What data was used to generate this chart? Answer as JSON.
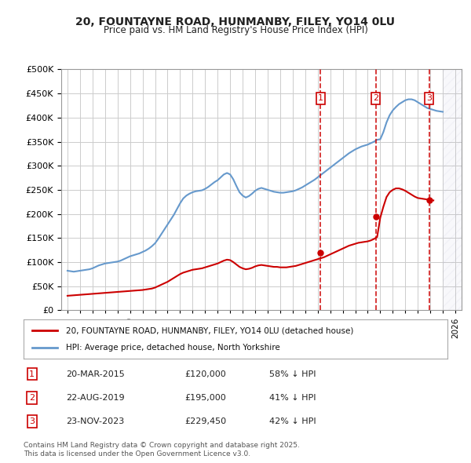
{
  "title": "20, FOUNTAYNE ROAD, HUNMANBY, FILEY, YO14 0LU",
  "subtitle": "Price paid vs. HM Land Registry's House Price Index (HPI)",
  "ylabel": "",
  "bg_color": "#ffffff",
  "plot_bg_color": "#ffffff",
  "grid_color": "#cccccc",
  "hpi_color": "#6699cc",
  "price_color": "#cc0000",
  "ylim": [
    0,
    500000
  ],
  "yticks": [
    0,
    50000,
    100000,
    150000,
    200000,
    250000,
    300000,
    350000,
    400000,
    450000,
    500000
  ],
  "ytick_labels": [
    "£0",
    "£50K",
    "£100K",
    "£150K",
    "£200K",
    "£250K",
    "£300K",
    "£350K",
    "£400K",
    "£450K",
    "£500K"
  ],
  "xlim_start": 1994.5,
  "xlim_end": 2026.5,
  "hatch_start": 2025.0,
  "transactions": [
    {
      "num": 1,
      "date": "20-MAR-2015",
      "x": 2015.22,
      "price": 120000,
      "pct": "58%",
      "dir": "↓"
    },
    {
      "num": 2,
      "date": "22-AUG-2019",
      "x": 2019.64,
      "price": 195000,
      "pct": "41%",
      "dir": "↓"
    },
    {
      "num": 3,
      "date": "23-NOV-2023",
      "x": 2023.9,
      "price": 229450,
      "pct": "42%",
      "dir": "↓"
    }
  ],
  "legend_line1": "20, FOUNTAYNE ROAD, HUNMANBY, FILEY, YO14 0LU (detached house)",
  "legend_line2": "HPI: Average price, detached house, North Yorkshire",
  "footnote": "Contains HM Land Registry data © Crown copyright and database right 2025.\nThis data is licensed under the Open Government Licence v3.0.",
  "hpi_data_x": [
    1995,
    1995.25,
    1995.5,
    1995.75,
    1996,
    1996.25,
    1996.5,
    1996.75,
    1997,
    1997.25,
    1997.5,
    1997.75,
    1998,
    1998.25,
    1998.5,
    1998.75,
    1999,
    1999.25,
    1999.5,
    1999.75,
    2000,
    2000.25,
    2000.5,
    2000.75,
    2001,
    2001.25,
    2001.5,
    2001.75,
    2002,
    2002.25,
    2002.5,
    2002.75,
    2003,
    2003.25,
    2003.5,
    2003.75,
    2004,
    2004.25,
    2004.5,
    2004.75,
    2005,
    2005.25,
    2005.5,
    2005.75,
    2006,
    2006.25,
    2006.5,
    2006.75,
    2007,
    2007.25,
    2007.5,
    2007.75,
    2008,
    2008.25,
    2008.5,
    2008.75,
    2009,
    2009.25,
    2009.5,
    2009.75,
    2010,
    2010.25,
    2010.5,
    2010.75,
    2011,
    2011.25,
    2011.5,
    2011.75,
    2012,
    2012.25,
    2012.5,
    2012.75,
    2013,
    2013.25,
    2013.5,
    2013.75,
    2014,
    2014.25,
    2014.5,
    2014.75,
    2015,
    2015.25,
    2015.5,
    2015.75,
    2016,
    2016.25,
    2016.5,
    2016.75,
    2017,
    2017.25,
    2017.5,
    2017.75,
    2018,
    2018.25,
    2018.5,
    2018.75,
    2019,
    2019.25,
    2019.5,
    2019.75,
    2020,
    2020.25,
    2020.5,
    2020.75,
    2021,
    2021.25,
    2021.5,
    2021.75,
    2022,
    2022.25,
    2022.5,
    2022.75,
    2023,
    2023.25,
    2023.5,
    2023.75,
    2024,
    2024.25,
    2024.5,
    2024.75,
    2025
  ],
  "hpi_data_y": [
    82000,
    81000,
    80000,
    81000,
    82000,
    83000,
    84000,
    85000,
    87000,
    90000,
    93000,
    95000,
    97000,
    98000,
    99000,
    100000,
    101000,
    103000,
    106000,
    109000,
    112000,
    114000,
    116000,
    118000,
    121000,
    124000,
    128000,
    133000,
    139000,
    148000,
    158000,
    168000,
    178000,
    188000,
    198000,
    210000,
    222000,
    232000,
    238000,
    242000,
    245000,
    247000,
    248000,
    249000,
    252000,
    256000,
    261000,
    266000,
    270000,
    276000,
    282000,
    285000,
    282000,
    272000,
    258000,
    245000,
    238000,
    234000,
    237000,
    242000,
    248000,
    252000,
    254000,
    252000,
    250000,
    248000,
    246000,
    245000,
    244000,
    244000,
    245000,
    246000,
    247000,
    249000,
    252000,
    255000,
    259000,
    263000,
    267000,
    271000,
    276000,
    281000,
    286000,
    291000,
    296000,
    301000,
    306000,
    311000,
    316000,
    321000,
    326000,
    330000,
    334000,
    337000,
    340000,
    342000,
    344000,
    347000,
    350000,
    354000,
    355000,
    370000,
    390000,
    405000,
    415000,
    422000,
    428000,
    432000,
    436000,
    438000,
    438000,
    436000,
    432000,
    428000,
    424000,
    420000,
    418000,
    416000,
    414000,
    413000,
    412000
  ],
  "price_data_x": [
    1995,
    1995.25,
    1995.5,
    1995.75,
    1996,
    1996.25,
    1996.5,
    1996.75,
    1997,
    1997.25,
    1997.5,
    1997.75,
    1998,
    1998.25,
    1998.5,
    1998.75,
    1999,
    1999.25,
    1999.5,
    1999.75,
    2000,
    2000.25,
    2000.5,
    2000.75,
    2001,
    2001.25,
    2001.5,
    2001.75,
    2002,
    2002.25,
    2002.5,
    2002.75,
    2003,
    2003.25,
    2003.5,
    2003.75,
    2004,
    2004.25,
    2004.5,
    2004.75,
    2005,
    2005.25,
    2005.5,
    2005.75,
    2006,
    2006.25,
    2006.5,
    2006.75,
    2007,
    2007.25,
    2007.5,
    2007.75,
    2008,
    2008.25,
    2008.5,
    2008.75,
    2009,
    2009.25,
    2009.5,
    2009.75,
    2010,
    2010.25,
    2010.5,
    2010.75,
    2011,
    2011.25,
    2011.5,
    2011.75,
    2012,
    2012.25,
    2012.5,
    2012.75,
    2013,
    2013.25,
    2013.5,
    2013.75,
    2014,
    2014.25,
    2014.5,
    2014.75,
    2015,
    2015.25,
    2015.5,
    2015.75,
    2016,
    2016.25,
    2016.5,
    2016.75,
    2017,
    2017.25,
    2017.5,
    2017.75,
    2018,
    2018.25,
    2018.5,
    2018.75,
    2019,
    2019.25,
    2019.5,
    2019.75,
    2020,
    2020.25,
    2020.5,
    2020.75,
    2021,
    2021.25,
    2021.5,
    2021.75,
    2022,
    2022.25,
    2022.5,
    2022.75,
    2023,
    2023.25,
    2023.5,
    2023.75,
    2024,
    2024.25
  ],
  "price_data_y": [
    30000,
    30500,
    31000,
    31500,
    32000,
    32500,
    33000,
    33500,
    34000,
    34500,
    35000,
    35500,
    36000,
    36500,
    37000,
    37500,
    38000,
    38500,
    39000,
    39500,
    40000,
    40500,
    41000,
    41500,
    42000,
    43000,
    44000,
    45000,
    47000,
    50000,
    53000,
    56000,
    59000,
    63000,
    67000,
    71000,
    75000,
    78000,
    80000,
    82000,
    84000,
    85000,
    86000,
    87000,
    89000,
    91000,
    93000,
    95000,
    97000,
    100000,
    103000,
    105000,
    104000,
    100000,
    95000,
    90000,
    87000,
    85000,
    86000,
    88000,
    91000,
    93000,
    94000,
    93000,
    92000,
    91000,
    90000,
    90000,
    89000,
    89000,
    89000,
    90000,
    91000,
    92000,
    94000,
    96000,
    98000,
    100000,
    102000,
    104000,
    106000,
    108000,
    110000,
    113000,
    116000,
    119000,
    122000,
    125000,
    128000,
    131000,
    134000,
    136000,
    138000,
    140000,
    141000,
    142000,
    143000,
    145000,
    148000,
    152000,
    192000,
    215000,
    235000,
    245000,
    250000,
    253000,
    253000,
    251000,
    248000,
    244000,
    240000,
    236000,
    233000,
    232000,
    231000,
    230000,
    229000,
    228000
  ]
}
